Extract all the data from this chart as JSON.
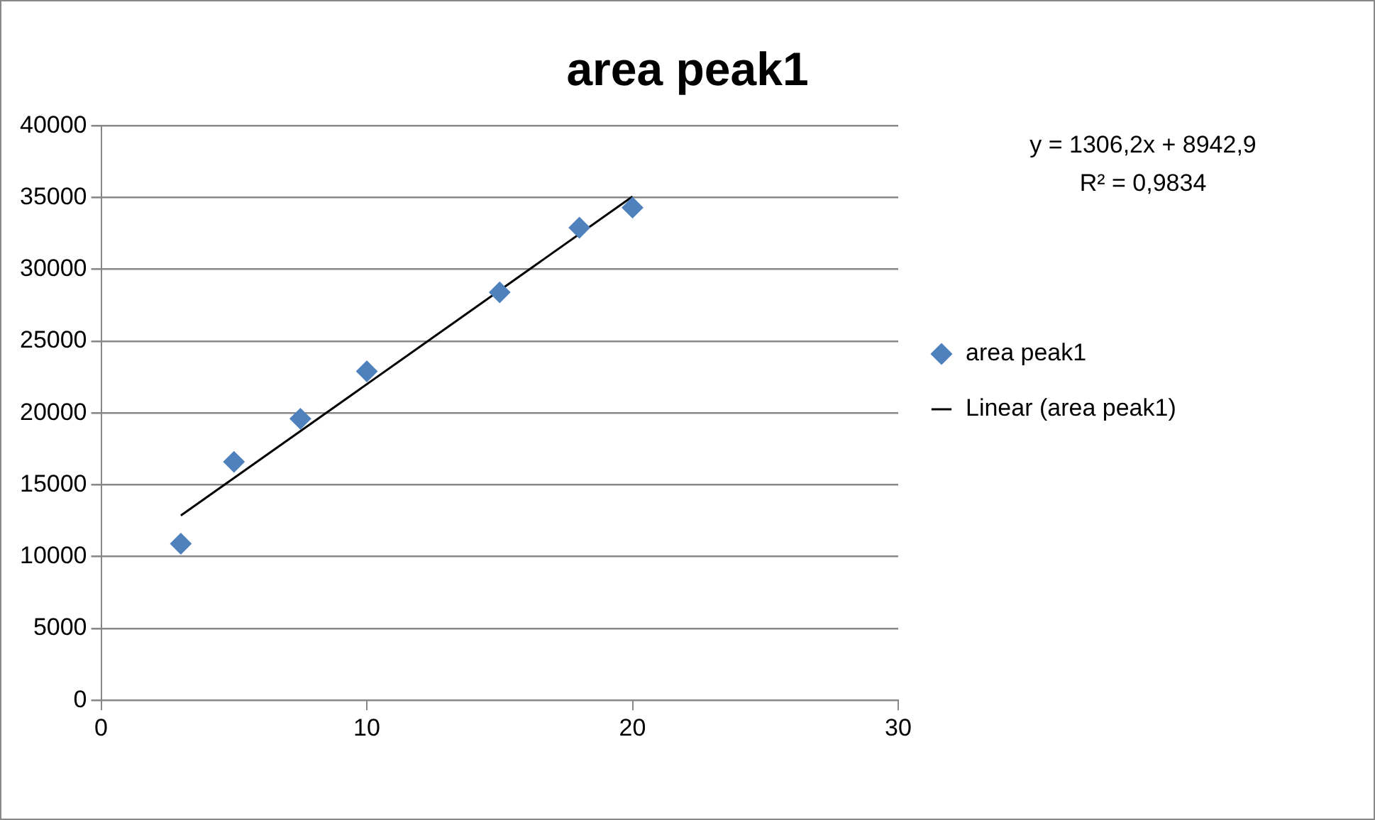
{
  "chart_data": {
    "type": "scatter",
    "title": "area peak1",
    "series": [
      {
        "name": "area peak1",
        "color": "#4f81bd",
        "marker": "diamond",
        "x": [
          3,
          5,
          7.5,
          10,
          15,
          18,
          20
        ],
        "values": [
          10900,
          16600,
          19600,
          22900,
          28400,
          32900,
          34300
        ]
      },
      {
        "name": "Linear (area peak1)",
        "type": "line",
        "color": "#000000",
        "marker": "none",
        "x": [
          3,
          20
        ],
        "values": [
          12860,
          35070
        ]
      }
    ],
    "xlim": [
      0,
      30
    ],
    "xticks": [
      0,
      10,
      20,
      30
    ],
    "ylim": [
      0,
      40000
    ],
    "yticks": [
      0,
      5000,
      10000,
      15000,
      20000,
      25000,
      30000,
      35000,
      40000
    ],
    "grid": "y",
    "legend": "right",
    "annotations": [
      "y = 1306,2x + 8942,9",
      "R² = 0,9834"
    ]
  }
}
